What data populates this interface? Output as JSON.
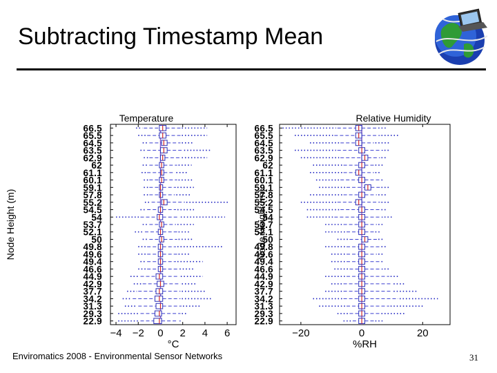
{
  "slide": {
    "title": "Subtracting Timestamp Mean",
    "footer": "Enviromatics 2008 - Environmental Sensor Networks",
    "page_number": "31",
    "logo_icon": "globe-with-laptop-icon"
  },
  "chart_data": [
    {
      "type": "boxplot",
      "title": "Temperature",
      "xlabel": "°C",
      "ylabel": "Node Height (m)",
      "xlim": [
        -4.5,
        6.8
      ],
      "xticks": [
        -4,
        -2,
        0,
        2,
        4,
        6
      ],
      "grid": false,
      "categories": [
        "66.5",
        "65.5",
        "64.5",
        "63.5",
        "62.9",
        "62",
        "61.1",
        "60.1",
        "59.1",
        "57.8",
        "55.2",
        "54.5",
        "54",
        "53.7",
        "52.1",
        "50",
        "49.8",
        "49.6",
        "49.4",
        "46.6",
        "44.9",
        "42.9",
        "37.7",
        "34.2",
        "31.3",
        "29.3",
        "22.9"
      ],
      "series": [
        {
          "q1": [
            -0.1,
            -0.1,
            0.1,
            0.0,
            0.0,
            -0.1,
            0.0,
            -0.1,
            -0.1,
            -0.1,
            0.1,
            -0.2,
            -0.3,
            -0.1,
            -0.2,
            -0.1,
            -0.2,
            -0.2,
            -0.2,
            -0.2,
            -0.4,
            -0.3,
            -0.4,
            -0.5,
            -0.4,
            -0.5,
            -0.6
          ],
          "median": [
            0.2,
            0.2,
            0.3,
            0.3,
            0.2,
            0.1,
            0.1,
            0.1,
            0.0,
            0.0,
            0.3,
            0.0,
            -0.1,
            0.1,
            0.0,
            0.1,
            0.0,
            0.0,
            0.0,
            0.0,
            -0.1,
            0.0,
            -0.1,
            -0.1,
            0.0,
            -0.1,
            -0.1
          ],
          "q3": [
            0.5,
            0.5,
            0.6,
            0.6,
            0.4,
            0.3,
            0.3,
            0.3,
            0.2,
            0.2,
            0.6,
            0.2,
            0.2,
            0.3,
            0.2,
            0.3,
            0.2,
            0.2,
            0.2,
            0.2,
            0.2,
            0.3,
            0.2,
            0.2,
            0.2,
            0.1,
            0.1
          ],
          "whisker_low": [
            -1.5,
            -1.2,
            -1.0,
            -1.2,
            -1.0,
            -1.0,
            -1.2,
            -1.0,
            -1.0,
            -1.0,
            -0.8,
            -1.2,
            -1.8,
            -1.0,
            -1.4,
            -1.0,
            -1.2,
            -1.2,
            -1.2,
            -1.2,
            -1.8,
            -1.6,
            -2.0,
            -2.5,
            -2.0,
            -1.8,
            -1.8
          ],
          "whisker_high": [
            1.8,
            1.8,
            1.8,
            2.0,
            1.8,
            1.5,
            1.3,
            1.5,
            1.4,
            1.3,
            2.2,
            1.4,
            1.7,
            1.4,
            1.5,
            1.5,
            1.4,
            1.5,
            1.4,
            1.6,
            1.7,
            1.8,
            1.8,
            1.8,
            1.9,
            1.8,
            1.6
          ],
          "outlier_low": [
            -2.2,
            -2.0,
            -1.6,
            -1.8,
            -1.5,
            -1.6,
            -1.7,
            -1.5,
            -1.5,
            -1.5,
            -1.4,
            -1.8,
            -4.0,
            -1.6,
            -2.3,
            -1.6,
            -2.0,
            -2.0,
            -1.8,
            -2.0,
            -2.7,
            -2.4,
            -3.0,
            -3.4,
            -3.2,
            -3.8,
            -3.8
          ],
          "outlier_high": [
            4.2,
            4.2,
            3.0,
            4.6,
            4.2,
            2.8,
            2.5,
            3.0,
            3.0,
            2.8,
            6.2,
            3.2,
            5.8,
            3.0,
            2.7,
            3.0,
            5.6,
            2.7,
            3.8,
            3.0,
            3.8,
            3.3,
            4.0,
            4.6,
            3.6,
            2.4,
            1.8
          ]
        }
      ]
    },
    {
      "type": "boxplot",
      "title": "Relative Humidity",
      "xlabel": "%RH",
      "ylabel": "Node Height (m)",
      "xlim": [
        -27,
        29
      ],
      "xticks": [
        -20,
        0,
        20
      ],
      "grid": false,
      "categories": [
        "66.5",
        "65.5",
        "64.5",
        "63.5",
        "62.9",
        "62",
        "61.1",
        "60.1",
        "59.1",
        "57.8",
        "55.2",
        "54.5",
        "54",
        "53.7",
        "52.1",
        "50",
        "49.8",
        "49.6",
        "49.4",
        "46.6",
        "44.9",
        "42.9",
        "37.7",
        "34.2",
        "31.3",
        "29.3",
        "22.9"
      ],
      "series": [
        {
          "q1": [
            -2,
            -2,
            -2,
            -1,
            0,
            -1,
            -2,
            -1,
            1,
            -1,
            -2,
            -1,
            -1,
            -1,
            -1,
            0,
            -1,
            -1,
            -1,
            -1,
            -1,
            -1,
            -1,
            -1,
            -1,
            -1,
            -1
          ],
          "median": [
            -1,
            -1,
            -1,
            0,
            1,
            0,
            -1,
            0,
            2,
            0,
            -1,
            0,
            0,
            0,
            0,
            1,
            0,
            0,
            0,
            0,
            0,
            0,
            0,
            0,
            0,
            0,
            0
          ],
          "q3": [
            0,
            0,
            0,
            1,
            2,
            1,
            0,
            1,
            3,
            1,
            0,
            1,
            1,
            1,
            1,
            2,
            1,
            1,
            1,
            1,
            1,
            1,
            1,
            1,
            1,
            1,
            1
          ],
          "whisker_low": [
            -8,
            -9,
            -7,
            -8,
            -7,
            -6,
            -6,
            -7,
            -5,
            -6,
            -8,
            -7,
            -9,
            -6,
            -5,
            -4,
            -5,
            -5,
            -5,
            -4,
            -5,
            -6,
            -6,
            -6,
            -5,
            -4,
            -3
          ],
          "whisker_high": [
            5,
            6,
            4,
            7,
            6,
            4,
            4,
            6,
            6,
            5,
            6,
            6,
            7,
            5,
            4,
            5,
            6,
            5,
            6,
            7,
            9,
            10,
            10,
            12,
            9,
            6,
            4
          ],
          "outlier_low": [
            -26,
            -22,
            -17,
            -22,
            -20,
            -16,
            -17,
            -15,
            -14,
            -17,
            -20,
            -18,
            -18,
            -12,
            -12,
            -8,
            -12,
            -10,
            -10,
            -9,
            -12,
            -10,
            -12,
            -16,
            -14,
            -8,
            -6
          ],
          "outlier_high": [
            8,
            12,
            9,
            9,
            8,
            7,
            6,
            7,
            9,
            8,
            9,
            8,
            10,
            7,
            6,
            7,
            8,
            7,
            7,
            9,
            12,
            14,
            18,
            25,
            20,
            14,
            7
          ]
        }
      ]
    }
  ]
}
